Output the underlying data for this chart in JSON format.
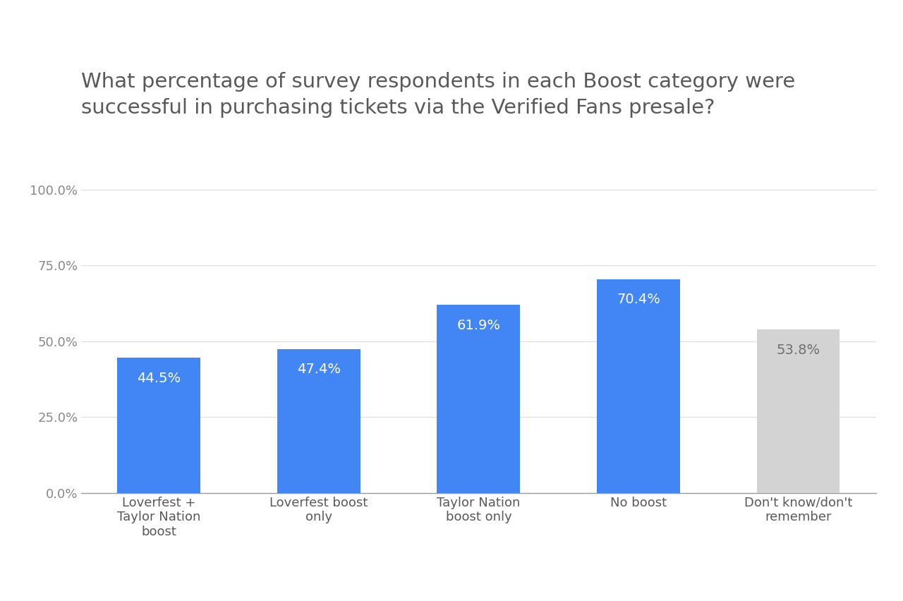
{
  "title_line1": "What percentage of survey respondents in each Boost category were",
  "title_line2": "successful in purchasing tickets via the Verified Fans presale?",
  "categories": [
    "Loverfest +\nTaylor Nation\nboost",
    "Loverfest boost\nonly",
    "Taylor Nation\nboost only",
    "No boost",
    "Don't know/don't\nremember"
  ],
  "values": [
    44.5,
    47.4,
    61.9,
    70.4,
    53.8
  ],
  "bar_colors": [
    "#4285F4",
    "#4285F4",
    "#4285F4",
    "#4285F4",
    "#D3D3D3"
  ],
  "label_colors": [
    "#FFFFFF",
    "#FFFFFF",
    "#FFFFFF",
    "#FFFFFF",
    "#707070"
  ],
  "background_color": "#FFFFFF",
  "yticks": [
    0,
    25.0,
    50.0,
    75.0,
    100.0
  ],
  "ytick_labels": [
    "0.0%",
    "25.0%",
    "50.0%",
    "75.0%",
    "100.0%"
  ],
  "ylim": [
    0,
    107
  ],
  "title_fontsize": 21,
  "tick_fontsize": 13,
  "bar_label_fontsize": 14,
  "title_color": "#595959",
  "tick_color": "#595959",
  "ytick_color": "#888888",
  "grid_color": "#DDDDDD",
  "axis_color": "#999999"
}
